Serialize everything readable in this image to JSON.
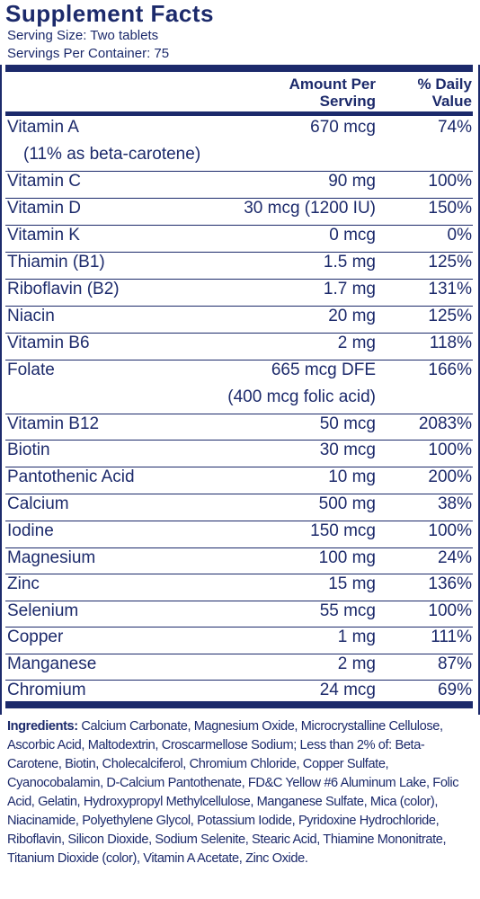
{
  "title": "Supplement Facts",
  "serving_size": "Serving Size: Two tablets",
  "servings_per_container": "Servings Per Container: 75",
  "header": {
    "amount_line1": "Amount Per",
    "amount_line2": "Serving",
    "dv_line1": "% Daily",
    "dv_line2": "Value"
  },
  "nutrients": [
    {
      "name": "Vitamin A",
      "amount": "670 mcg",
      "dv": "74%",
      "note": "(11% as beta-carotene)"
    },
    {
      "name": "Vitamin C",
      "amount": "90 mg",
      "dv": "100%"
    },
    {
      "name": "Vitamin D",
      "amount": "30 mcg (1200 IU)",
      "dv": "150%"
    },
    {
      "name": "Vitamin K",
      "amount": "0 mcg",
      "dv": "0%"
    },
    {
      "name": "Thiamin (B1)",
      "amount": "1.5 mg",
      "dv": "125%"
    },
    {
      "name": "Riboflavin (B2)",
      "amount": "1.7 mg",
      "dv": "131%"
    },
    {
      "name": "Niacin",
      "amount": "20 mg",
      "dv": "125%"
    },
    {
      "name": "Vitamin B6",
      "amount": "2 mg",
      "dv": "118%"
    },
    {
      "name": "Folate",
      "amount": "665 mcg DFE",
      "dv": "166%",
      "note": "(400 mcg folic acid)"
    },
    {
      "name": "Vitamin B12",
      "amount": "50 mcg",
      "dv": "2083%"
    },
    {
      "name": "Biotin",
      "amount": "30 mcg",
      "dv": "100%"
    },
    {
      "name": "Pantothenic Acid",
      "amount": "10 mg",
      "dv": "200%"
    },
    {
      "name": "Calcium",
      "amount": "500 mg",
      "dv": "38%"
    },
    {
      "name": "Iodine",
      "amount": "150 mcg",
      "dv": "100%"
    },
    {
      "name": "Magnesium",
      "amount": "100 mg",
      "dv": "24%"
    },
    {
      "name": "Zinc",
      "amount": "15 mg",
      "dv": "136%"
    },
    {
      "name": "Selenium",
      "amount": "55 mcg",
      "dv": "100%"
    },
    {
      "name": "Copper",
      "amount": "1 mg",
      "dv": "111%"
    },
    {
      "name": "Manganese",
      "amount": "2 mg",
      "dv": "87%"
    },
    {
      "name": "Chromium",
      "amount": "24 mcg",
      "dv": "69%"
    }
  ],
  "ingredients_label": "Ingredients:",
  "ingredients_text": "Calcium Carbonate, Magnesium Oxide, Microcrystalline Cellulose, Ascorbic Acid, Maltodextrin, Croscarmellose Sodium; Less than 2% of: Beta-Carotene, Biotin, Cholecalciferol, Chromium Chloride, Copper Sulfate, Cyanocobalamin, D-Calcium Pantothenate, FD&C Yellow #6 Aluminum Lake, Folic Acid, Gelatin, Hydroxypropyl Methylcellulose, Manganese Sulfate, Mica (color), Niacinamide, Polyethylene Glycol, Potassium Iodide, Pyridoxine Hydrochloride, Riboflavin, Silicon Dioxide, Sodium Selenite, Stearic Acid, Thiamine Mononitrate, Titanium Dioxide (color), Vitamin A Acetate, Zinc Oxide."
}
